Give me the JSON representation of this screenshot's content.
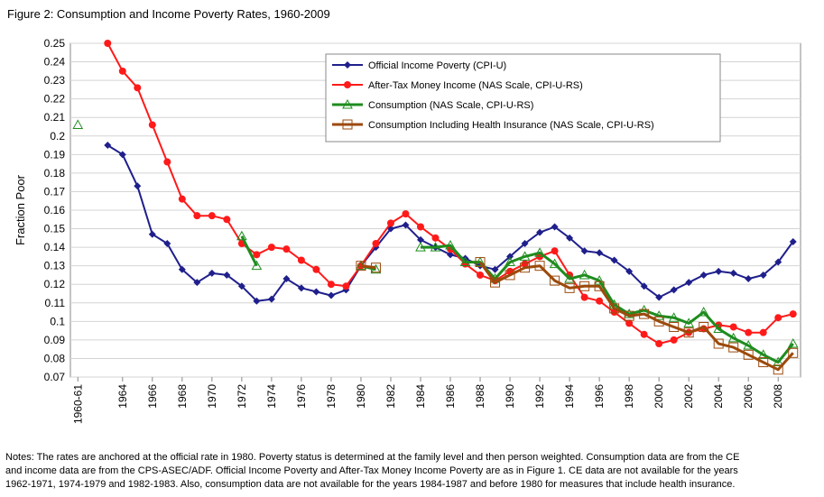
{
  "chart_data": {
    "type": "line",
    "title": "Figure 2: Consumption and Income Poverty Rates, 1960-2009",
    "xlabel": "",
    "ylabel": "Fraction Poor",
    "ylim": [
      0.07,
      0.25
    ],
    "yticks": [
      "0.07",
      "0.08",
      "0.09",
      "0.1",
      "0.11",
      "0.12",
      "0.13",
      "0.14",
      "0.15",
      "0.16",
      "0.17",
      "0.18",
      "0.19",
      "0.2",
      "0.21",
      "0.22",
      "0.23",
      "0.24",
      "0.25"
    ],
    "xticks": [
      "1960-61",
      "1964",
      "1966",
      "1968",
      "1970",
      "1972",
      "1974",
      "1976",
      "1978",
      "1980",
      "1982",
      "1984",
      "1986",
      "1988",
      "1990",
      "1992",
      "1994",
      "1996",
      "1998",
      "2000",
      "2002",
      "2004",
      "2006",
      "2008"
    ],
    "x_note": "x values are calendar years; 1961 marks the combined 1960-61 observation",
    "grid": true,
    "legend_position": "top-right",
    "series": [
      {
        "name": "Official Income Poverty (CPI-U)",
        "color": "#1f1f8c",
        "marker": "diamond",
        "line": true,
        "points": [
          [
            1963,
            0.195
          ],
          [
            1964,
            0.19
          ],
          [
            1965,
            0.173
          ],
          [
            1966,
            0.147
          ],
          [
            1967,
            0.142
          ],
          [
            1968,
            0.128
          ],
          [
            1969,
            0.121
          ],
          [
            1970,
            0.126
          ],
          [
            1971,
            0.125
          ],
          [
            1972,
            0.119
          ],
          [
            1973,
            0.111
          ],
          [
            1974,
            0.112
          ],
          [
            1975,
            0.123
          ],
          [
            1976,
            0.118
          ],
          [
            1977,
            0.116
          ],
          [
            1978,
            0.114
          ],
          [
            1979,
            0.117
          ],
          [
            1980,
            0.13
          ],
          [
            1981,
            0.14
          ],
          [
            1982,
            0.15
          ],
          [
            1983,
            0.152
          ],
          [
            1984,
            0.144
          ],
          [
            1985,
            0.14
          ],
          [
            1986,
            0.136
          ],
          [
            1987,
            0.134
          ],
          [
            1988,
            0.13
          ],
          [
            1989,
            0.128
          ],
          [
            1990,
            0.135
          ],
          [
            1991,
            0.142
          ],
          [
            1992,
            0.148
          ],
          [
            1993,
            0.151
          ],
          [
            1994,
            0.145
          ],
          [
            1995,
            0.138
          ],
          [
            1996,
            0.137
          ],
          [
            1997,
            0.133
          ],
          [
            1998,
            0.127
          ],
          [
            1999,
            0.119
          ],
          [
            2000,
            0.113
          ],
          [
            2001,
            0.117
          ],
          [
            2002,
            0.121
          ],
          [
            2003,
            0.125
          ],
          [
            2004,
            0.127
          ],
          [
            2005,
            0.126
          ],
          [
            2006,
            0.123
          ],
          [
            2007,
            0.125
          ],
          [
            2008,
            0.132
          ],
          [
            2009,
            0.143
          ]
        ]
      },
      {
        "name": "After-Tax Money Income (NAS Scale, CPI-U-RS)",
        "color": "#ff1a1a",
        "marker": "circle",
        "line": true,
        "points": [
          [
            1963,
            0.25
          ],
          [
            1964,
            0.235
          ],
          [
            1965,
            0.226
          ],
          [
            1966,
            0.206
          ],
          [
            1967,
            0.186
          ],
          [
            1968,
            0.166
          ],
          [
            1969,
            0.157
          ],
          [
            1970,
            0.157
          ],
          [
            1971,
            0.155
          ],
          [
            1972,
            0.142
          ],
          [
            1973,
            0.136
          ],
          [
            1974,
            0.14
          ],
          [
            1975,
            0.139
          ],
          [
            1976,
            0.133
          ],
          [
            1977,
            0.128
          ],
          [
            1978,
            0.12
          ],
          [
            1979,
            0.119
          ],
          [
            1980,
            0.13
          ],
          [
            1981,
            0.142
          ],
          [
            1982,
            0.153
          ],
          [
            1983,
            0.158
          ],
          [
            1984,
            0.151
          ],
          [
            1985,
            0.145
          ],
          [
            1986,
            0.139
          ],
          [
            1987,
            0.131
          ],
          [
            1988,
            0.125
          ],
          [
            1989,
            0.122
          ],
          [
            1990,
            0.127
          ],
          [
            1991,
            0.131
          ],
          [
            1992,
            0.135
          ],
          [
            1993,
            0.138
          ],
          [
            1994,
            0.125
          ],
          [
            1995,
            0.113
          ],
          [
            1996,
            0.111
          ],
          [
            1997,
            0.105
          ],
          [
            1998,
            0.099
          ],
          [
            1999,
            0.093
          ],
          [
            2000,
            0.088
          ],
          [
            2001,
            0.09
          ],
          [
            2002,
            0.094
          ],
          [
            2003,
            0.096
          ],
          [
            2004,
            0.098
          ],
          [
            2005,
            0.097
          ],
          [
            2006,
            0.094
          ],
          [
            2007,
            0.094
          ],
          [
            2008,
            0.102
          ],
          [
            2009,
            0.104
          ]
        ]
      },
      {
        "name": "Consumption (NAS Scale, CPI-U-RS)",
        "color": "#1e8c1e",
        "marker": "triangle",
        "line": true,
        "segments": [
          [
            [
              1961,
              0.206
            ]
          ],
          [
            [
              1972,
              0.146
            ],
            [
              1973,
              0.13
            ]
          ],
          [
            [
              1980,
              0.13
            ],
            [
              1981,
              0.128
            ]
          ],
          [
            [
              1984,
              0.14
            ],
            [
              1985,
              0.14
            ],
            [
              1986,
              0.141
            ],
            [
              1987,
              0.132
            ],
            [
              1988,
              0.132
            ],
            [
              1989,
              0.123
            ],
            [
              1990,
              0.132
            ],
            [
              1991,
              0.135
            ],
            [
              1992,
              0.137
            ],
            [
              1993,
              0.131
            ],
            [
              1994,
              0.123
            ],
            [
              1995,
              0.125
            ],
            [
              1996,
              0.122
            ],
            [
              1997,
              0.109
            ],
            [
              1998,
              0.104
            ],
            [
              1999,
              0.106
            ],
            [
              2000,
              0.103
            ],
            [
              2001,
              0.102
            ],
            [
              2002,
              0.099
            ],
            [
              2003,
              0.105
            ],
            [
              2004,
              0.096
            ],
            [
              2005,
              0.091
            ],
            [
              2006,
              0.087
            ],
            [
              2007,
              0.082
            ],
            [
              2008,
              0.078
            ],
            [
              2009,
              0.088
            ]
          ]
        ]
      },
      {
        "name": "Consumption Including Health Insurance (NAS Scale, CPI-U-RS)",
        "color": "#9c4a0c",
        "marker": "square",
        "line": true,
        "segments": [
          [
            [
              1980,
              0.13
            ],
            [
              1981,
              0.129
            ]
          ],
          [
            [
              1988,
              0.132
            ],
            [
              1989,
              0.121
            ],
            [
              1990,
              0.125
            ],
            [
              1991,
              0.129
            ],
            [
              1992,
              0.13
            ],
            [
              1993,
              0.122
            ],
            [
              1994,
              0.118
            ],
            [
              1995,
              0.119
            ],
            [
              1996,
              0.119
            ],
            [
              1997,
              0.107
            ],
            [
              1998,
              0.103
            ],
            [
              1999,
              0.104
            ],
            [
              2000,
              0.1
            ],
            [
              2001,
              0.097
            ],
            [
              2002,
              0.094
            ],
            [
              2003,
              0.097
            ],
            [
              2004,
              0.088
            ],
            [
              2005,
              0.086
            ],
            [
              2006,
              0.082
            ],
            [
              2007,
              0.078
            ],
            [
              2008,
              0.074
            ],
            [
              2009,
              0.083
            ]
          ]
        ]
      }
    ]
  },
  "notes": {
    "line1": "Notes: The rates are anchored at the official rate in 1980.  Poverty status is determined at the family level and then person weighted.  Consumption data are from the CE",
    "line2": "and income data are from the CPS-ASEC/ADF.  Official Income Poverty and After-Tax Money Income Poverty are as in Figure 1.  CE data are not available for the years",
    "line3": "1962-1971, 1974-1979 and 1982-1983.  Also, consumption data are not available for the years 1984-1987 and before 1980 for measures that include health insurance."
  }
}
